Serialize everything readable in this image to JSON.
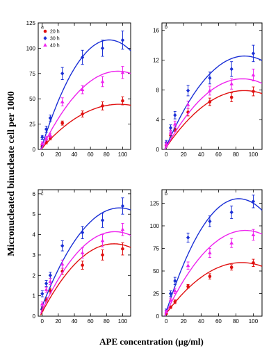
{
  "figure": {
    "xlabel": "APE concentration (µg/ml)",
    "ylabel": "Micronucleated binucleate cell per 1000"
  },
  "colors": {
    "20 h": "#e01010",
    "30 h": "#1a2fd6",
    "40 h": "#ee22ee"
  },
  "legend": [
    "20 h",
    "30 h",
    "40 h"
  ],
  "chart_data": [
    {
      "type": "scatter",
      "panel": "a",
      "xlim": [
        -5,
        110
      ],
      "ylim": [
        0,
        125
      ],
      "xticks": [
        0,
        20,
        40,
        60,
        80,
        100
      ],
      "yticks": [
        0,
        25,
        50,
        75,
        100,
        125
      ],
      "legend_position": "top-left",
      "x": [
        0,
        5,
        10,
        25,
        50,
        75,
        100
      ],
      "series": [
        {
          "name": "20 h",
          "values": [
            3,
            7,
            11,
            26,
            35,
            43,
            48
          ],
          "errors": [
            1,
            1.5,
            1.5,
            2,
            3,
            4,
            4
          ],
          "fit": [
            1.5,
            0.9,
            -0.0047
          ]
        },
        {
          "name": "30 h",
          "values": [
            12,
            20,
            31,
            75,
            91,
            100,
            108
          ],
          "errors": [
            2,
            3,
            3,
            6,
            7,
            8,
            9
          ],
          "fit": [
            4,
            2.5,
            -0.015
          ]
        },
        {
          "name": "40 h",
          "values": [
            6,
            11,
            14,
            47,
            59,
            67,
            76
          ],
          "errors": [
            1.5,
            2,
            2,
            4,
            4,
            5,
            6
          ],
          "fit": [
            2,
            1.6,
            -0.0085
          ]
        }
      ]
    },
    {
      "type": "scatter",
      "panel": "b",
      "xlim": [
        -5,
        110
      ],
      "ylim": [
        0,
        17
      ],
      "xticks": [
        0,
        20,
        40,
        60,
        80,
        100
      ],
      "yticks": [
        0,
        4,
        8,
        12,
        16
      ],
      "x": [
        0,
        5,
        10,
        25,
        50,
        75,
        100
      ],
      "series": [
        {
          "name": "20 h",
          "values": [
            0.6,
            1.9,
            2.7,
            5.0,
            6.4,
            7.0,
            7.8
          ],
          "errors": [
            0.3,
            0.3,
            0.3,
            0.5,
            0.5,
            0.6,
            0.6
          ],
          "fit": [
            0.3,
            0.17,
            -0.00095
          ]
        },
        {
          "name": "30 h",
          "values": [
            0.9,
            2.9,
            4.6,
            7.9,
            9.6,
            10.8,
            12.9
          ],
          "errors": [
            0.3,
            0.4,
            0.5,
            0.7,
            0.8,
            1.0,
            1.1
          ],
          "fit": [
            0.4,
            0.27,
            -0.0015
          ]
        },
        {
          "name": "40 h",
          "values": [
            0.7,
            2.3,
            3.4,
            6.0,
            7.9,
            8.8,
            10.0
          ],
          "errors": [
            0.3,
            0.3,
            0.4,
            0.5,
            0.6,
            0.7,
            0.8
          ],
          "fit": [
            0.3,
            0.21,
            -0.0012
          ]
        }
      ]
    },
    {
      "type": "scatter",
      "panel": "c",
      "xlim": [
        -5,
        110
      ],
      "ylim": [
        0,
        6.2
      ],
      "xticks": [
        0,
        20,
        40,
        60,
        80,
        100
      ],
      "yticks": [
        0,
        1,
        2,
        3,
        4,
        5,
        6
      ],
      "x": [
        0,
        5,
        10,
        25,
        50,
        75,
        100
      ],
      "series": [
        {
          "name": "20 h",
          "values": [
            0.35,
            0.8,
            1.25,
            2.2,
            2.5,
            3.0,
            3.3
          ],
          "errors": [
            0.1,
            0.1,
            0.12,
            0.15,
            0.2,
            0.25,
            0.3
          ],
          "fit": [
            0.2,
            0.075,
            -0.00042
          ]
        },
        {
          "name": "30 h",
          "values": [
            1.1,
            1.6,
            2.0,
            3.45,
            4.1,
            4.7,
            5.4
          ],
          "errors": [
            0.15,
            0.15,
            0.15,
            0.25,
            0.3,
            0.35,
            0.4
          ],
          "fit": [
            0.5,
            0.1,
            -0.00052
          ]
        },
        {
          "name": "40 h",
          "values": [
            0.6,
            1.3,
            1.7,
            2.55,
            3.1,
            3.7,
            4.25
          ],
          "errors": [
            0.1,
            0.12,
            0.15,
            0.2,
            0.25,
            0.3,
            0.3
          ],
          "fit": [
            0.3,
            0.085,
            -0.00047
          ]
        }
      ]
    },
    {
      "type": "scatter",
      "panel": "b",
      "xlim": [
        -5,
        110
      ],
      "ylim": [
        0,
        140
      ],
      "xticks": [
        0,
        20,
        40,
        60,
        80,
        100
      ],
      "yticks": [
        0,
        25,
        50,
        75,
        100,
        125
      ],
      "x": [
        0,
        5,
        10,
        25,
        50,
        75,
        100
      ],
      "series": [
        {
          "name": "20 h",
          "values": [
            3,
            10,
            16,
            33,
            44,
            54,
            59
          ],
          "errors": [
            1,
            1.5,
            2,
            2,
            3,
            3,
            4
          ],
          "fit": [
            3,
            1.3,
            -0.0075
          ]
        },
        {
          "name": "30 h",
          "values": [
            6,
            25,
            39,
            87,
            105,
            115,
            127
          ],
          "errors": [
            2,
            3,
            4,
            5,
            6,
            7,
            7
          ],
          "fit": [
            5,
            3.0,
            -0.018
          ]
        },
        {
          "name": "40 h",
          "values": [
            5,
            18,
            28,
            56,
            70,
            81,
            90
          ],
          "errors": [
            1.5,
            2,
            3,
            4,
            5,
            5,
            6
          ],
          "fit": [
            4,
            2.0,
            -0.011
          ]
        }
      ]
    }
  ]
}
